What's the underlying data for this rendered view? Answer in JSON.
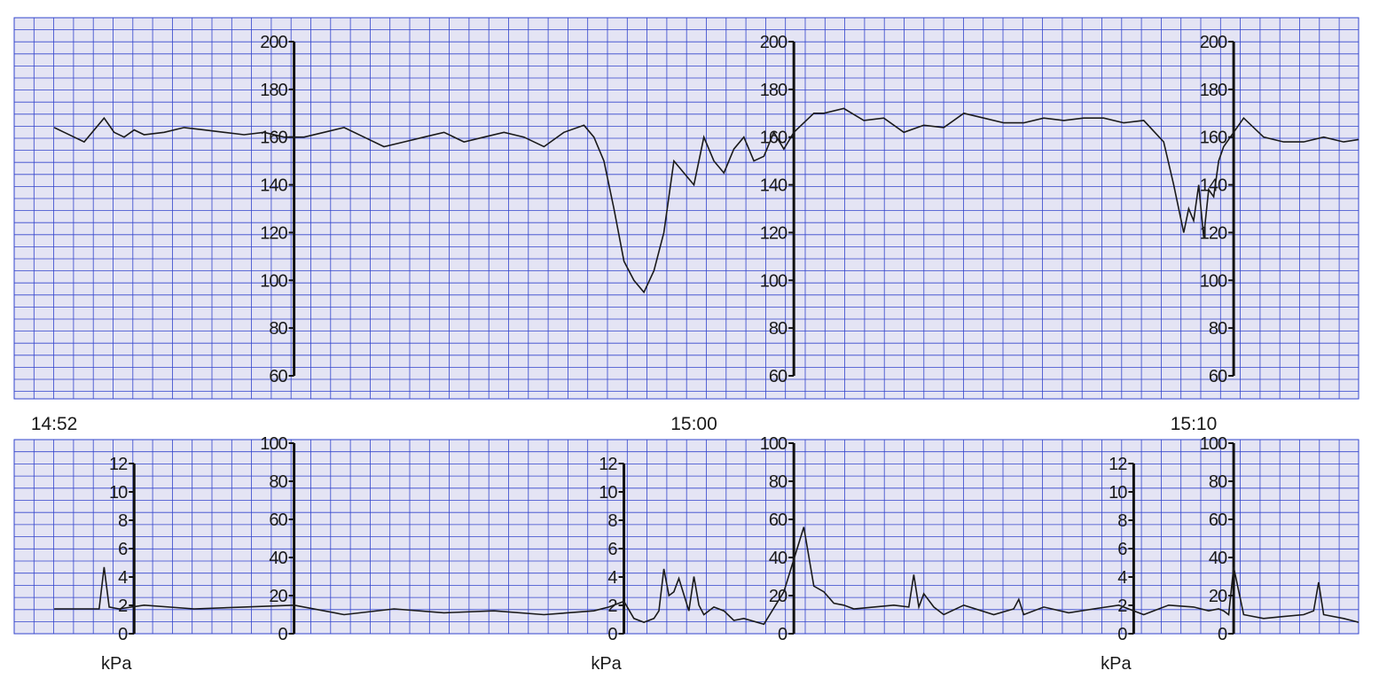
{
  "colors": {
    "grid_background": "#e4e4f4",
    "grid_line": "#3344cc",
    "trace": "#1a1a1a",
    "axis": "#111111"
  },
  "chart_data": [
    {
      "type": "line",
      "name": "fetal-heart-rate",
      "ylim": [
        55,
        210
      ],
      "xlim_minutes": [
        -5.6,
        21.3
      ],
      "time_labels": [
        "14:52",
        "15:00",
        "15:10"
      ],
      "time_label_minutes": [
        -4.8,
        8,
        18
      ],
      "axes": [
        {
          "x_minutes": 0,
          "ticks": [
            "200",
            "180",
            "160",
            "140",
            "120",
            "100",
            "80",
            "60"
          ],
          "tick_values": [
            200,
            180,
            160,
            140,
            120,
            100,
            80,
            60
          ]
        },
        {
          "x_minutes": 10,
          "ticks": [
            "200",
            "180",
            "160",
            "140",
            "120",
            "100",
            "80",
            "60"
          ],
          "tick_values": [
            200,
            180,
            160,
            140,
            120,
            100,
            80,
            60
          ]
        },
        {
          "x_minutes": 18.8,
          "ticks": [
            "200",
            "180",
            "160",
            "140",
            "120",
            "100",
            "80",
            "60"
          ],
          "tick_values": [
            200,
            180,
            160,
            140,
            120,
            100,
            80,
            60
          ]
        }
      ],
      "series": [
        {
          "x": [
            -4.8,
            -4.6,
            -4.4,
            -4.2,
            -3.8,
            -3.6,
            -3.4,
            -3.2,
            -3.0,
            -2.6,
            -2.2,
            -1.8,
            -1.4,
            -1.0,
            -0.6,
            -0.2,
            0.2,
            0.6,
            1.0,
            1.4,
            1.8,
            2.2,
            2.6,
            3.0,
            3.4,
            3.8,
            4.2,
            4.6,
            5.0,
            5.4,
            5.8,
            6.0,
            6.2,
            6.4,
            6.6,
            6.8,
            7.0,
            7.2,
            7.4,
            7.6,
            7.8,
            8.0,
            8.2,
            8.4,
            8.6,
            8.8,
            9.0,
            9.2,
            9.4,
            9.6,
            9.8,
            10.0,
            10.2,
            10.4,
            10.6,
            11.0,
            11.4,
            11.8,
            12.2,
            12.6,
            13.0,
            13.4,
            13.8,
            14.2,
            14.6,
            15.0,
            15.4,
            15.8,
            16.2,
            16.6,
            17.0,
            17.4,
            17.6,
            17.8,
            17.9,
            18.0,
            18.1,
            18.2,
            18.3,
            18.4,
            18.5,
            18.6,
            18.8,
            19.0,
            19.4,
            19.8,
            20.2,
            20.6,
            21.0,
            21.3
          ],
          "y": [
            164,
            162,
            160,
            158,
            168,
            162,
            160,
            163,
            161,
            162,
            164,
            163,
            162,
            161,
            162,
            160,
            160,
            162,
            164,
            160,
            156,
            158,
            160,
            162,
            158,
            160,
            162,
            160,
            156,
            162,
            165,
            160,
            150,
            130,
            108,
            100,
            95,
            104,
            120,
            150,
            145,
            140,
            160,
            150,
            145,
            155,
            160,
            150,
            152,
            162,
            155,
            162,
            166,
            170,
            170,
            172,
            167,
            168,
            162,
            165,
            164,
            170,
            168,
            166,
            166,
            168,
            167,
            168,
            168,
            166,
            167,
            158,
            140,
            120,
            130,
            125,
            140,
            118,
            138,
            135,
            150,
            156,
            162,
            168,
            160,
            158,
            158,
            160,
            158,
            159
          ]
        }
      ]
    },
    {
      "type": "line",
      "name": "contraction-pressure",
      "ylim": [
        -3,
        100
      ],
      "axes": [
        {
          "x_minutes": -3.2,
          "unit": "kPa",
          "ticks": [
            "12",
            "10",
            "8",
            "6",
            "4",
            "2",
            "0"
          ]
        },
        {
          "x_minutes": 0,
          "ticks": [
            "100",
            "80",
            "60",
            "40",
            "20",
            "0"
          ],
          "tick_values": [
            100,
            80,
            60,
            40,
            20,
            0
          ]
        },
        {
          "x_minutes": 6.6,
          "unit": "kPa",
          "ticks": [
            "12",
            "10",
            "8",
            "6",
            "4",
            "2",
            "0"
          ]
        },
        {
          "x_minutes": 10,
          "ticks": [
            "100",
            "80",
            "60",
            "40",
            "20",
            "0"
          ],
          "tick_values": [
            100,
            80,
            60,
            40,
            20,
            0
          ]
        },
        {
          "x_minutes": 16.8,
          "unit": "kPa",
          "ticks": [
            "12",
            "10",
            "8",
            "6",
            "4",
            "2",
            "0"
          ]
        },
        {
          "x_minutes": 18.8,
          "ticks": [
            "100",
            "80",
            "60",
            "40",
            "20",
            "0"
          ],
          "tick_values": [
            100,
            80,
            60,
            40,
            20,
            0
          ]
        }
      ],
      "series": [
        {
          "x": [
            -4.8,
            -4.2,
            -3.9,
            -3.8,
            -3.7,
            -3.5,
            -3.0,
            -2.0,
            -1.0,
            0.0,
            1.0,
            2.0,
            3.0,
            4.0,
            5.0,
            6.0,
            6.3,
            6.6,
            6.8,
            7.0,
            7.2,
            7.3,
            7.4,
            7.5,
            7.6,
            7.7,
            7.9,
            8.0,
            8.1,
            8.2,
            8.4,
            8.6,
            8.8,
            9.0,
            9.4,
            9.8,
            10.2,
            10.4,
            10.6,
            10.8,
            11.0,
            11.2,
            11.6,
            12.0,
            12.3,
            12.4,
            12.5,
            12.6,
            12.8,
            13.0,
            13.4,
            14.0,
            14.4,
            14.5,
            14.6,
            15.0,
            15.5,
            16.0,
            16.5,
            17.0,
            17.5,
            18.0,
            18.3,
            18.5,
            18.6,
            18.7,
            18.8,
            19.0,
            19.4,
            19.8,
            20.2,
            20.4,
            20.5,
            20.6,
            21.0,
            21.3
          ],
          "y": [
            13,
            13,
            13,
            35,
            14,
            13,
            15,
            13,
            14,
            15,
            10,
            13,
            11,
            12,
            10,
            12,
            14,
            17,
            8,
            6,
            8,
            12,
            34,
            20,
            22,
            29,
            12,
            30,
            15,
            10,
            14,
            12,
            7,
            8,
            5,
            22,
            56,
            25,
            22,
            16,
            15,
            13,
            14,
            15,
            14,
            31,
            14,
            21,
            14,
            10,
            15,
            10,
            13,
            18,
            10,
            14,
            11,
            13,
            15,
            10,
            15,
            14,
            12,
            13,
            12,
            10,
            35,
            10,
            8,
            9,
            10,
            12,
            27,
            10,
            8,
            6
          ]
        }
      ]
    }
  ]
}
